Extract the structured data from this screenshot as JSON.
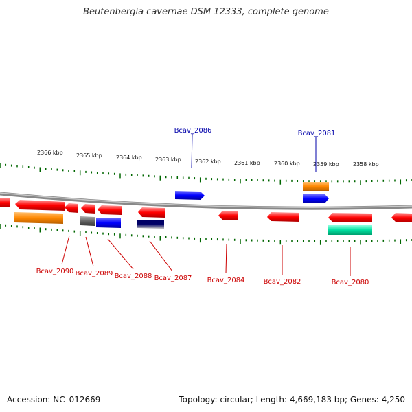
{
  "title": "Beutenbergia cavernae DSM 12333, complete genome",
  "footer": {
    "accession": "Accession: NC_012669",
    "summary": "Topology: circular; Length: 4,669,183 bp; Genes: 4,250"
  },
  "kbp_labels": [
    "2366 kbp",
    "2365 kbp",
    "2364 kbp",
    "2363 kbp",
    "2362 kbp",
    "2361 kbp",
    "2360 kbp",
    "2359 kbp",
    "2358 kbp"
  ],
  "genes_top": [
    "Bcav_2086",
    "Bcav_2081"
  ],
  "genes_bottom": [
    "Bcav_2090",
    "Bcav_2089",
    "Bcav_2088",
    "Bcav_2087",
    "Bcav_2084",
    "Bcav_2082",
    "Bcav_2080"
  ],
  "colors": {
    "gene_forward_label": "#0000aa",
    "gene_reverse_label": "#cc0000",
    "cds_red": "#ff0000",
    "cds_blue": "#0000ff",
    "rna_orange": "#ff8800",
    "rna_green": "#00e0a0",
    "gray_feature": "#666666",
    "navy_feature": "#000066",
    "ticks": "#006600",
    "backbone": "#888888"
  }
}
